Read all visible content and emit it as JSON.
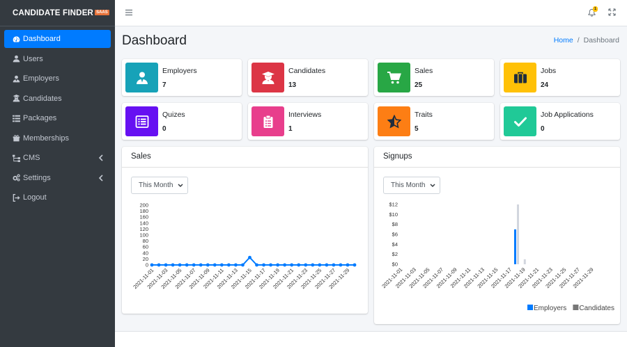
{
  "brand": {
    "name": "CANDIDATE FINDER",
    "badge": "SAAS"
  },
  "sidebar": {
    "items": [
      {
        "label": "Dashboard",
        "icon": "tachometer-icon",
        "active": true
      },
      {
        "label": "Users",
        "icon": "user-icon"
      },
      {
        "label": "Employers",
        "icon": "user-tie-icon"
      },
      {
        "label": "Candidates",
        "icon": "user-graduate-icon"
      },
      {
        "label": "Packages",
        "icon": "list-icon"
      },
      {
        "label": "Memberships",
        "icon": "gift-icon"
      },
      {
        "label": "CMS",
        "icon": "sitemap-icon",
        "chevron": true
      },
      {
        "label": "Settings",
        "icon": "cogs-icon",
        "chevron": true
      },
      {
        "label": "Logout",
        "icon": "sign-out-icon"
      }
    ]
  },
  "header": {
    "notification_count": "1"
  },
  "page": {
    "title": "Dashboard"
  },
  "breadcrumb": {
    "home": "Home",
    "separator": "/",
    "current": "Dashboard"
  },
  "stats": [
    {
      "label": "Employers",
      "value": "7",
      "color": "#17a2b8",
      "icon": "user-tie-icon"
    },
    {
      "label": "Candidates",
      "value": "13",
      "color": "#dc3545",
      "icon": "user-graduate-icon"
    },
    {
      "label": "Sales",
      "value": "25",
      "color": "#28a745",
      "icon": "cart-icon"
    },
    {
      "label": "Jobs",
      "value": "24",
      "color": "#ffc107",
      "icon": "briefcase-icon"
    },
    {
      "label": "Quizes",
      "value": "0",
      "color": "#6610f2",
      "icon": "list-alt-icon"
    },
    {
      "label": "Interviews",
      "value": "1",
      "color": "#e83e8c",
      "icon": "clipboard-icon"
    },
    {
      "label": "Traits",
      "value": "5",
      "color": "#fd7e14",
      "icon": "star-icon"
    },
    {
      "label": "Job Applications",
      "value": "0",
      "color": "#20c997",
      "icon": "check-icon"
    }
  ],
  "sales_card": {
    "title": "Sales",
    "filter": "This Month"
  },
  "signups_card": {
    "title": "Signups",
    "filter": "This Month"
  },
  "chart_data": [
    {
      "type": "line",
      "ylim": [
        0,
        200
      ],
      "yticks": [
        "0",
        "20",
        "40",
        "60",
        "80",
        "100",
        "120",
        "140",
        "160",
        "180",
        "200"
      ],
      "xtick_labels": [
        "2021-11-01",
        "2021-11-03",
        "2021-11-05",
        "2021-11-07",
        "2021-11-09",
        "2021-11-11",
        "2021-11-13",
        "2021-11-15",
        "2021-11-17",
        "2021-11-19",
        "2021-11-21",
        "2021-11-23",
        "2021-11-25",
        "2021-11-27",
        "2021-11-29"
      ],
      "x": [
        "2021-11-01",
        "2021-11-02",
        "2021-11-03",
        "2021-11-04",
        "2021-11-05",
        "2021-11-06",
        "2021-11-07",
        "2021-11-08",
        "2021-11-09",
        "2021-11-10",
        "2021-11-11",
        "2021-11-12",
        "2021-11-13",
        "2021-11-14",
        "2021-11-15",
        "2021-11-16",
        "2021-11-17",
        "2021-11-18",
        "2021-11-19",
        "2021-11-20",
        "2021-11-21",
        "2021-11-22",
        "2021-11-23",
        "2021-11-24",
        "2021-11-25",
        "2021-11-26",
        "2021-11-27",
        "2021-11-28",
        "2021-11-29",
        "2021-11-30"
      ],
      "series": [
        {
          "color": "#007bff",
          "values": [
            0,
            0,
            0,
            0,
            0,
            0,
            0,
            0,
            0,
            0,
            0,
            0,
            0,
            0,
            25,
            0,
            0,
            0,
            0,
            0,
            0,
            0,
            0,
            0,
            0,
            0,
            0,
            0,
            0,
            0
          ]
        }
      ]
    },
    {
      "type": "bar",
      "ylim": [
        0,
        12
      ],
      "yticks": [
        "$0",
        "$2",
        "$4",
        "$6",
        "$8",
        "$10",
        "$12"
      ],
      "xtick_labels": [
        "2021-11-01",
        "2021-11-03",
        "2021-11-05",
        "2021-11-07",
        "2021-11-09",
        "2021-11-11",
        "2021-11-13",
        "2021-11-15",
        "2021-11-17",
        "2021-11-19",
        "2021-11-21",
        "2021-11-23",
        "2021-11-25",
        "2021-11-27",
        "2021-11-29"
      ],
      "x": [
        "2021-11-01",
        "2021-11-02",
        "2021-11-03",
        "2021-11-04",
        "2021-11-05",
        "2021-11-06",
        "2021-11-07",
        "2021-11-08",
        "2021-11-09",
        "2021-11-10",
        "2021-11-11",
        "2021-11-12",
        "2021-11-13",
        "2021-11-14",
        "2021-11-15",
        "2021-11-16",
        "2021-11-17",
        "2021-11-18",
        "2021-11-19",
        "2021-11-20",
        "2021-11-21",
        "2021-11-22",
        "2021-11-23",
        "2021-11-24",
        "2021-11-25",
        "2021-11-26",
        "2021-11-27",
        "2021-11-28",
        "2021-11-29",
        "2021-11-30"
      ],
      "series": [
        {
          "name": "Employers",
          "color": "#007bff",
          "values": [
            0,
            0,
            0,
            0,
            0,
            0,
            0,
            0,
            0,
            0,
            0,
            0,
            0,
            0,
            0,
            0,
            0,
            7,
            0,
            0,
            0,
            0,
            0,
            0,
            0,
            0,
            0,
            0,
            0,
            0
          ]
        },
        {
          "name": "Candidates",
          "color": "#d2d6de",
          "values": [
            0,
            0,
            0,
            0,
            0,
            0,
            0,
            0,
            0,
            0,
            0,
            0,
            0,
            0,
            0,
            0,
            0,
            12,
            1,
            0,
            0,
            0,
            0,
            0,
            0,
            0,
            0,
            0,
            0,
            0
          ]
        }
      ],
      "legend": "bottom-right"
    }
  ]
}
